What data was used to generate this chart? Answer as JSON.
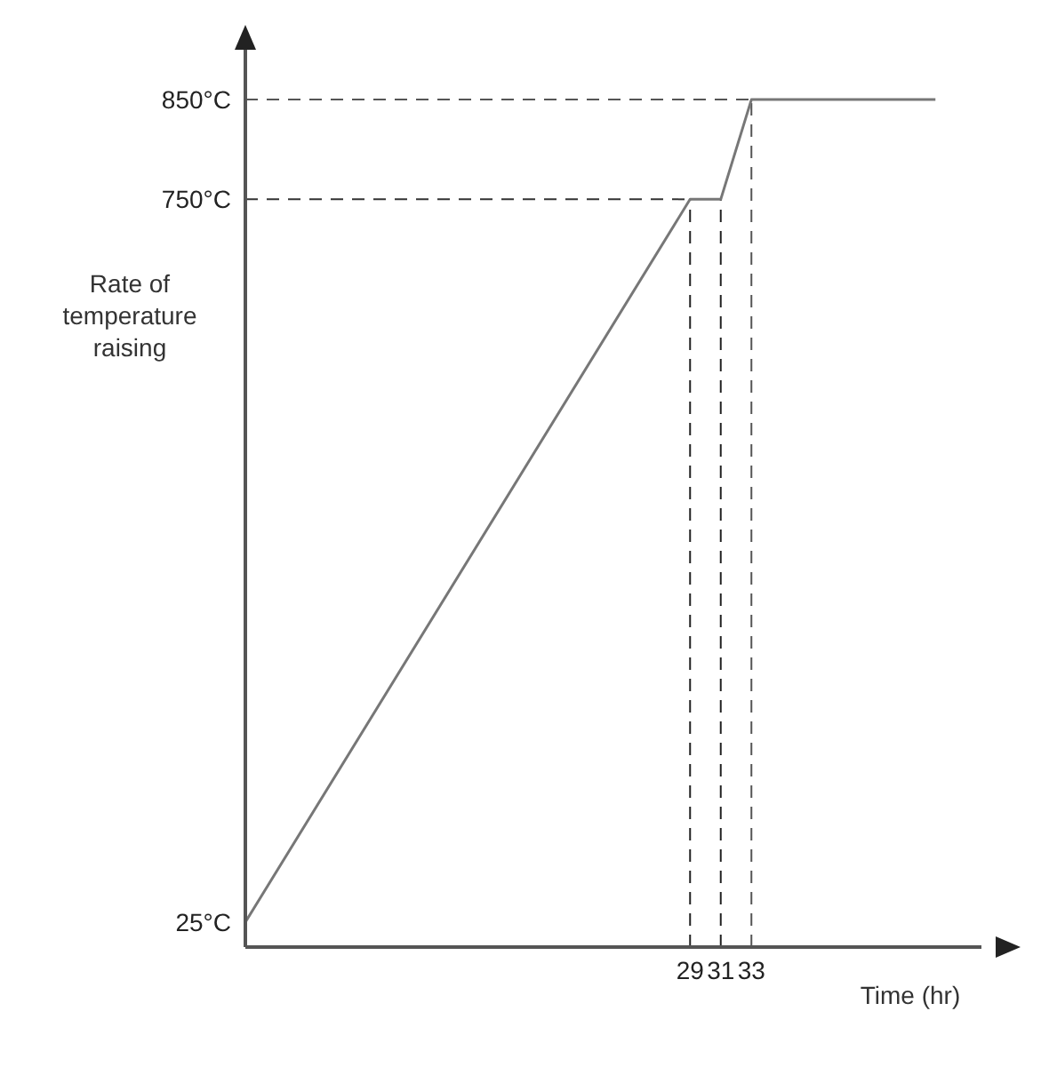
{
  "chart_data": {
    "type": "line",
    "xlabel": "Time (hr)",
    "ylabel": "Rate of temperature raising",
    "x": [
      0,
      29,
      31,
      33,
      45
    ],
    "series": [
      {
        "color": "#777777",
        "values": [
          25,
          750,
          750,
          850,
          850
        ]
      }
    ],
    "xlim": [
      0,
      48
    ],
    "xticks": [
      29,
      31,
      33
    ],
    "ylim": [
      0,
      900
    ],
    "yticks": [
      {
        "value": 25,
        "label": "25°C"
      },
      {
        "value": 750,
        "label": "750°C"
      },
      {
        "value": 850,
        "label": "850°C"
      }
    ],
    "ref_lines": [
      {
        "axis": "y",
        "value": 750,
        "line_style": "dashed",
        "color": "#333333"
      },
      {
        "axis": "y",
        "value": 850,
        "line_style": "dashed",
        "color": "#555555"
      },
      {
        "axis": "x",
        "value": 29,
        "line_style": "dashed",
        "color": "#222222"
      },
      {
        "axis": "x",
        "value": 31,
        "line_style": "dashed",
        "color": "#222222"
      },
      {
        "axis": "x",
        "value": 33,
        "line_style": "dashed",
        "color": "#555555"
      }
    ],
    "grid": false,
    "legend": false,
    "marker": "none",
    "line_style": "solid"
  }
}
